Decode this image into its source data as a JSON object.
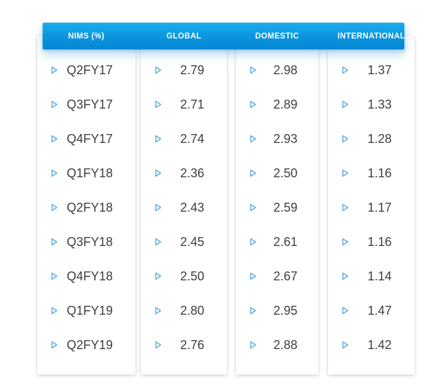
{
  "table": {
    "headers": [
      {
        "label": "NIMS (%)"
      },
      {
        "label": "GLOBAL"
      },
      {
        "label": "DOMESTIC"
      },
      {
        "label": "INTERNATIONAL"
      }
    ],
    "rows": [
      {
        "quarter": "Q2FY17",
        "global": "2.79",
        "domestic": "2.98",
        "international": "1.37"
      },
      {
        "quarter": "Q3FY17",
        "global": "2.71",
        "domestic": "2.89",
        "international": "1.33"
      },
      {
        "quarter": "Q4FY17",
        "global": "2.74",
        "domestic": "2.93",
        "international": "1.28"
      },
      {
        "quarter": "Q1FY18",
        "global": "2.36",
        "domestic": "2.50",
        "international": "1.16"
      },
      {
        "quarter": "Q2FY18",
        "global": "2.43",
        "domestic": "2.59",
        "international": "1.17"
      },
      {
        "quarter": "Q3FY18",
        "global": "2.45",
        "domestic": "2.61",
        "international": "1.16"
      },
      {
        "quarter": "Q4FY18",
        "global": "2.50",
        "domestic": "2.67",
        "international": "1.14"
      },
      {
        "quarter": "Q1FY19",
        "global": "2.80",
        "domestic": "2.95",
        "international": "1.47"
      },
      {
        "quarter": "Q2FY19",
        "global": "2.76",
        "domestic": "2.88",
        "international": "1.42"
      }
    ]
  },
  "icons": {
    "row_marker": "triangle-right-outline-icon"
  },
  "colors": {
    "header_gradient_top": "#18aeef",
    "header_gradient_bottom": "#0486d4",
    "header_text": "#ffffff",
    "icon_blue": "#55aadd",
    "cell_text": "#3e3e3e",
    "card_background": "#ffffff",
    "page_background": "#ffffff"
  },
  "chart_data": {
    "type": "table",
    "title": "NIMS (%)",
    "columns": [
      "NIMS (%)",
      "GLOBAL",
      "DOMESTIC",
      "INTERNATIONAL"
    ],
    "categories": [
      "Q2FY17",
      "Q3FY17",
      "Q4FY17",
      "Q1FY18",
      "Q2FY18",
      "Q3FY18",
      "Q4FY18",
      "Q1FY19",
      "Q2FY19"
    ],
    "series": [
      {
        "name": "GLOBAL",
        "values": [
          2.79,
          2.71,
          2.74,
          2.36,
          2.43,
          2.45,
          2.5,
          2.8,
          2.76
        ]
      },
      {
        "name": "DOMESTIC",
        "values": [
          2.98,
          2.89,
          2.93,
          2.5,
          2.59,
          2.61,
          2.67,
          2.95,
          2.88
        ]
      },
      {
        "name": "INTERNATIONAL",
        "values": [
          1.37,
          1.33,
          1.28,
          1.16,
          1.17,
          1.16,
          1.14,
          1.47,
          1.42
        ]
      }
    ]
  }
}
